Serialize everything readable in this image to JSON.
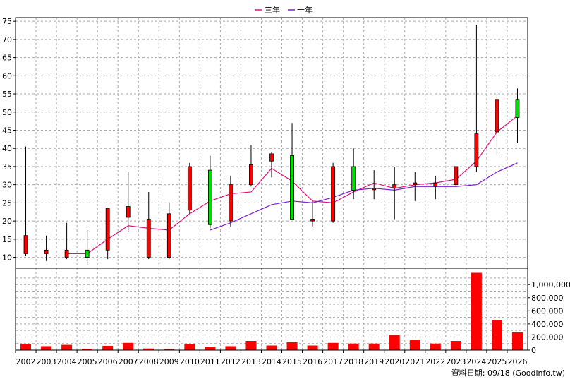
{
  "legend": [
    {
      "label": "三年",
      "color": "#e0107a"
    },
    {
      "label": "十年",
      "color": "#7b1fd6"
    }
  ],
  "footer": "資料日期: 09/18  (Goodinfo.tw)",
  "colors": {
    "up": "#ff0000",
    "down": "#00dd00",
    "volume": "#ff0000",
    "wick": "#000000"
  },
  "chart_data": {
    "type": "candlestick",
    "categories": [
      "2002",
      "2003",
      "2004",
      "2005",
      "2006",
      "2007",
      "2008",
      "2009",
      "2010",
      "2011",
      "2012",
      "2013",
      "2014",
      "2015",
      "2016",
      "2017",
      "2018",
      "2019",
      "2020",
      "2021",
      "2022",
      "2023",
      "2024",
      "2025",
      "2026"
    ],
    "price_axis": {
      "ylim": [
        7,
        76
      ],
      "ticks": [
        10,
        15,
        20,
        25,
        30,
        35,
        40,
        45,
        50,
        55,
        60,
        65,
        70,
        75
      ]
    },
    "candles": [
      {
        "o": 11.0,
        "h": 40.5,
        "l": 10.5,
        "c": 16.0
      },
      {
        "o": 11.0,
        "h": 16.0,
        "l": 9.0,
        "c": 12.0
      },
      {
        "o": 10.0,
        "h": 19.5,
        "l": 9.5,
        "c": 12.0
      },
      {
        "o": 12.0,
        "h": 17.5,
        "l": 8.0,
        "c": 10.0
      },
      {
        "o": 12.0,
        "h": 23.5,
        "l": 9.5,
        "c": 23.5
      },
      {
        "o": 21.0,
        "h": 33.5,
        "l": 17.0,
        "c": 24.0
      },
      {
        "o": 10.0,
        "h": 28.0,
        "l": 9.5,
        "c": 20.5
      },
      {
        "o": 10.0,
        "h": 25.0,
        "l": 9.5,
        "c": 22.0
      },
      {
        "o": 23.0,
        "h": 36.0,
        "l": 22.0,
        "c": 35.0
      },
      {
        "o": 34.0,
        "h": 38.0,
        "l": 18.0,
        "c": 19.0
      },
      {
        "o": 20.0,
        "h": 32.5,
        "l": 18.5,
        "c": 30.0
      },
      {
        "o": 30.0,
        "h": 41.0,
        "l": 29.5,
        "c": 35.5
      },
      {
        "o": 36.5,
        "h": 39.0,
        "l": 32.0,
        "c": 38.5
      },
      {
        "o": 38.0,
        "h": 47.0,
        "l": 20.5,
        "c": 20.5
      },
      {
        "o": 20.0,
        "h": 25.5,
        "l": 18.5,
        "c": 20.5
      },
      {
        "o": 20.0,
        "h": 36.0,
        "l": 19.5,
        "c": 35.0
      },
      {
        "o": 35.0,
        "h": 40.0,
        "l": 26.0,
        "c": 28.5
      },
      {
        "o": 29.0,
        "h": 34.0,
        "l": 26.0,
        "c": 29.0
      },
      {
        "o": 29.0,
        "h": 35.0,
        "l": 20.5,
        "c": 30.0
      },
      {
        "o": 30.0,
        "h": 33.5,
        "l": 25.5,
        "c": 30.5
      },
      {
        "o": 29.5,
        "h": 32.5,
        "l": 26.0,
        "c": 30.5
      },
      {
        "o": 30.0,
        "h": 35.0,
        "l": 29.5,
        "c": 35.0
      },
      {
        "o": 35.0,
        "h": 74.0,
        "l": 33.5,
        "c": 44.0
      },
      {
        "o": 44.5,
        "h": 55.0,
        "l": 38.0,
        "c": 53.5
      },
      {
        "o": 53.5,
        "h": 56.5,
        "l": 41.5,
        "c": 48.5
      }
    ],
    "series": [
      {
        "name": "三年",
        "values": [
          null,
          null,
          11.0,
          11.0,
          15.0,
          18.7,
          18.0,
          17.5,
          22.0,
          25.5,
          27.5,
          28.0,
          34.5,
          31.0,
          25.5,
          25.0,
          28.0,
          30.5,
          29.0,
          30.0,
          30.5,
          31.5,
          36.5,
          44.5,
          49.0
        ]
      },
      {
        "name": "十年",
        "values": [
          null,
          null,
          null,
          null,
          null,
          null,
          null,
          null,
          null,
          17.5,
          19.5,
          22.0,
          24.5,
          25.5,
          25.0,
          26.5,
          28.5,
          29.0,
          28.5,
          29.5,
          29.5,
          29.5,
          30.0,
          33.5,
          36.0
        ]
      }
    ],
    "volume_axis": {
      "ylim": [
        0,
        1250000
      ],
      "ticks": [
        0,
        200000,
        400000,
        600000,
        800000,
        1000000
      ],
      "tick_labels": [
        "0",
        "200,000",
        "400,000",
        "600,000",
        "800,000",
        "1,000,000"
      ]
    },
    "volume": [
      95000,
      60000,
      80000,
      20000,
      65000,
      110000,
      25000,
      15000,
      90000,
      50000,
      60000,
      140000,
      70000,
      120000,
      70000,
      110000,
      100000,
      100000,
      230000,
      160000,
      100000,
      140000,
      1180000,
      460000,
      270000
    ],
    "grid": true,
    "legend_position": "top-center"
  }
}
